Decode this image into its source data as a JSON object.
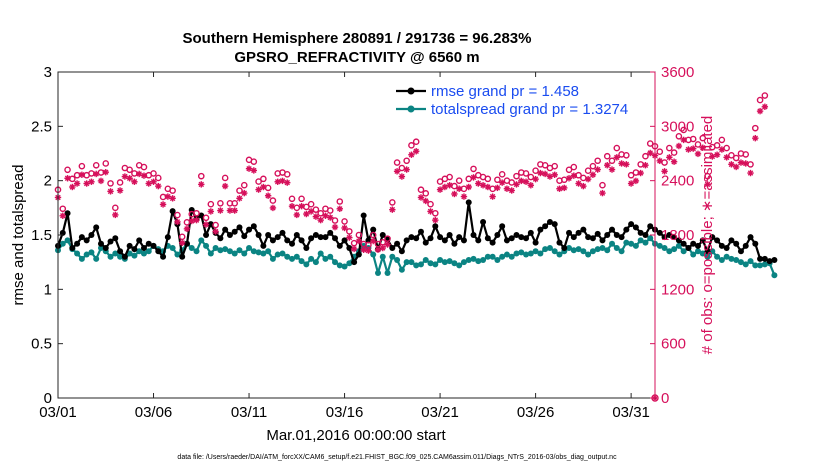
{
  "colors": {
    "rmse": "#000000",
    "spread": "#0b8483",
    "obs": "#d6105b",
    "legend_text": "#1a4cf0"
  },
  "chart_data": {
    "type": "line",
    "title": "Southern Hemisphere 280891 / 291736 = 96.283%",
    "subtitle": "GPSRO_REFRACTIVITY @ 6560 m",
    "xlabel": "Mar.01,2016 00:00:00 start",
    "ylabel_left": "rmse and totalspread",
    "ylabel_right": "# of obs: o=possible; ∗=assimilated",
    "footer": "data file: /Users/raeder/DAI/ATM_forcXX/CAM6_setup/f.e21.FHIST_BGC.f09_025.CAM6assim.011/Diags_NTrS_2016-03/obs_diag_output.nc",
    "x_range": [
      1,
      32.25
    ],
    "ylim_left": [
      0,
      3
    ],
    "ylim_right": [
      0,
      3600
    ],
    "x_ticks": [
      1,
      6,
      11,
      16,
      21,
      26,
      31
    ],
    "x_tick_labels": [
      "03/01",
      "03/06",
      "03/11",
      "03/16",
      "03/21",
      "03/26",
      "03/31"
    ],
    "y_left_ticks": [
      0,
      0.5,
      1,
      1.5,
      2,
      2.5,
      3
    ],
    "y_left_tick_labels": [
      "0",
      "0.5",
      "1",
      "1.5",
      "2",
      "2.5",
      "3"
    ],
    "y_right_ticks": [
      0,
      600,
      1200,
      1800,
      2400,
      3000,
      3600
    ],
    "y_right_tick_labels": [
      "0",
      "600",
      "1200",
      "1800",
      "2400",
      "3000",
      "3600"
    ],
    "x_start": 1.0,
    "x_step": 0.25,
    "legend": {
      "location": "top-right",
      "rmse_label": "rmse grand pr = 1.458",
      "spread_label": "totalspread grand pr = 1.3274"
    },
    "series": [
      {
        "name": "rmse",
        "axis": "left",
        "marker": "filled-circle",
        "values": [
          1.4,
          1.52,
          1.7,
          1.38,
          1.42,
          1.48,
          1.45,
          1.5,
          1.57,
          1.42,
          1.38,
          1.44,
          1.47,
          1.35,
          1.3,
          1.4,
          1.37,
          1.45,
          1.38,
          1.42,
          1.4,
          1.35,
          1.3,
          1.48,
          1.72,
          1.6,
          1.3,
          1.42,
          1.73,
          1.65,
          1.68,
          1.5,
          1.6,
          1.52,
          1.47,
          1.55,
          1.5,
          1.53,
          1.57,
          1.49,
          1.55,
          1.58,
          1.5,
          1.4,
          1.5,
          1.45,
          1.48,
          1.52,
          1.45,
          1.42,
          1.5,
          1.45,
          1.38,
          1.47,
          1.5,
          1.48,
          1.48,
          1.52,
          1.47,
          1.4,
          1.45,
          1.38,
          1.25,
          1.32,
          1.68,
          1.45,
          1.55,
          1.37,
          1.5,
          1.46,
          1.38,
          1.42,
          1.35,
          1.45,
          1.48,
          1.47,
          1.53,
          1.43,
          1.47,
          1.58,
          1.48,
          1.45,
          1.5,
          1.42,
          1.48,
          1.45,
          1.8,
          1.5,
          1.45,
          1.62,
          1.47,
          1.43,
          1.5,
          1.58,
          1.45,
          1.47,
          1.5,
          1.48,
          1.47,
          1.52,
          1.43,
          1.55,
          1.58,
          1.62,
          1.6,
          1.43,
          1.38,
          1.52,
          1.48,
          1.52,
          1.55,
          1.48,
          1.47,
          1.51,
          1.45,
          1.5,
          1.55,
          1.5,
          1.48,
          1.55,
          1.6,
          1.57,
          1.52,
          1.5,
          1.58,
          1.55,
          1.52,
          1.48,
          1.5,
          1.48,
          1.45,
          1.42,
          1.38,
          1.42,
          1.4,
          1.45,
          1.35,
          1.48,
          1.45,
          1.4,
          1.38,
          1.45,
          1.42,
          1.35,
          1.4,
          1.48,
          1.42,
          1.28,
          1.28,
          1.26,
          1.27
        ]
      },
      {
        "name": "totalspread",
        "axis": "left",
        "marker": "filled-circle",
        "values": [
          1.36,
          1.42,
          1.45,
          1.37,
          1.33,
          1.28,
          1.32,
          1.34,
          1.28,
          1.38,
          1.35,
          1.3,
          1.33,
          1.3,
          1.28,
          1.33,
          1.31,
          1.35,
          1.33,
          1.35,
          1.4,
          1.37,
          1.35,
          1.4,
          1.38,
          1.32,
          1.36,
          1.42,
          1.38,
          1.35,
          1.45,
          1.4,
          1.33,
          1.38,
          1.36,
          1.37,
          1.35,
          1.33,
          1.36,
          1.33,
          1.38,
          1.35,
          1.34,
          1.33,
          1.35,
          1.28,
          1.32,
          1.33,
          1.3,
          1.28,
          1.3,
          1.26,
          1.23,
          1.28,
          1.25,
          1.33,
          1.28,
          1.3,
          1.25,
          1.22,
          1.21,
          1.24,
          1.3,
          1.35,
          1.4,
          1.38,
          1.32,
          1.15,
          1.3,
          1.15,
          1.3,
          1.27,
          1.18,
          1.25,
          1.25,
          1.22,
          1.23,
          1.27,
          1.24,
          1.23,
          1.27,
          1.25,
          1.26,
          1.24,
          1.22,
          1.25,
          1.27,
          1.28,
          1.26,
          1.27,
          1.3,
          1.3,
          1.27,
          1.3,
          1.32,
          1.3,
          1.33,
          1.34,
          1.32,
          1.33,
          1.35,
          1.33,
          1.37,
          1.38,
          1.35,
          1.32,
          1.35,
          1.38,
          1.36,
          1.37,
          1.35,
          1.32,
          1.35,
          1.37,
          1.38,
          1.36,
          1.42,
          1.38,
          1.35,
          1.43,
          1.42,
          1.4,
          1.45,
          1.43,
          1.47,
          1.42,
          1.4,
          1.38,
          1.35,
          1.37,
          1.4,
          1.35,
          1.38,
          1.32,
          1.35,
          1.33,
          1.3,
          1.35,
          1.3,
          1.27,
          1.3,
          1.28,
          1.27,
          1.25,
          1.23,
          1.26,
          1.22,
          1.22,
          1.23,
          1.24,
          1.13
        ]
      }
    ],
    "obs_possible": [
      2300,
      2090,
      2520,
      2420,
      2460,
      2560,
      2460,
      2480,
      2570,
      2490,
      2590,
      2370,
      2100,
      2380,
      2540,
      2520,
      2480,
      2570,
      2550,
      2460,
      2480,
      2430,
      2220,
      2310,
      2290,
      2020,
      1780,
      1940,
      2030,
      2040,
      2450,
      1990,
      2140,
      1910,
      2150,
      2430,
      2150,
      2150,
      2290,
      2350,
      2630,
      2610,
      2390,
      2420,
      2320,
      2180,
      2480,
      2490,
      2470,
      2200,
      2100,
      2200,
      2110,
      2140,
      2080,
      2040,
      2090,
      2070,
      1960,
      2170,
      1950,
      1840,
      1710,
      1800,
      1700,
      1690,
      1800,
      1700,
      1720,
      1760,
      2160,
      2600,
      2540,
      2620,
      2790,
      2830,
      2300,
      2260,
      2140,
      2040,
      2390,
      2420,
      2440,
      2340,
      2400,
      2310,
      2420,
      2530,
      2460,
      2440,
      2420,
      2310,
      2410,
      2470,
      2400,
      2380,
      2450,
      2490,
      2480,
      2440,
      2510,
      2580,
      2570,
      2540,
      2560,
      2400,
      2410,
      2520,
      2550,
      2460,
      2430,
      2510,
      2560,
      2620,
      2350,
      2670,
      2620,
      2760,
      2690,
      2680,
      2460,
      2490,
      2580,
      2670,
      2810,
      2780,
      2720,
      2600,
      2760,
      2710,
      2890,
      2960,
      2850,
      2860,
      2800,
      2870,
      2450,
      2770,
      2790,
      2850,
      2760,
      2680,
      2650,
      2700,
      2690,
      2580,
      2980,
      3290,
      3340
    ]
  }
}
